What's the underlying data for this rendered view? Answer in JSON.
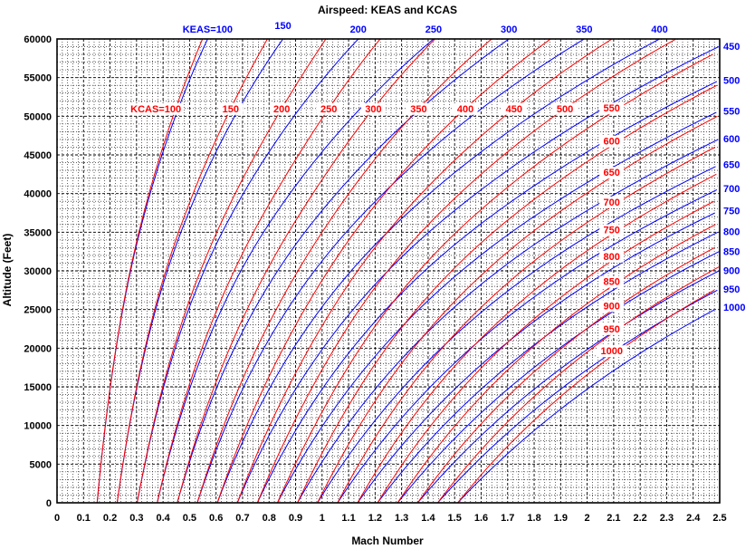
{
  "chart_data": {
    "type": "line",
    "title": "Airspeed: KEAS and KCAS",
    "xlabel": "Mach Number",
    "ylabel": "Altitude (Feet)",
    "xlim": [
      0,
      2.5
    ],
    "ylim": [
      0,
      60000
    ],
    "x_ticks": [
      "0",
      "0.1",
      "0.2",
      "0.3",
      "0.4",
      "0.5",
      "0.6",
      "0.7",
      "0.8",
      "0.9",
      "1",
      "1.1",
      "1.2",
      "1.3",
      "1.4",
      "1.5",
      "1.6",
      "1.7",
      "1.8",
      "1.9",
      "2",
      "2.1",
      "2.2",
      "2.3",
      "2.4",
      "2.5"
    ],
    "y_ticks": [
      "0",
      "5000",
      "10000",
      "15000",
      "20000",
      "25000",
      "30000",
      "35000",
      "40000",
      "45000",
      "50000",
      "55000",
      "60000"
    ],
    "grid": "on",
    "colors": {
      "kcas": "#ff0000",
      "keas": "#0000ff",
      "grid": "#000000"
    },
    "series": [
      {
        "name": "KCAS",
        "speeds_knots": [
          100,
          150,
          200,
          250,
          300,
          350,
          400,
          450,
          500,
          550,
          600,
          650,
          700,
          750,
          800,
          850,
          900,
          950,
          1000
        ],
        "labels": [
          "KCAS=100",
          "150",
          "200",
          "250",
          "300",
          "350",
          "400",
          "450",
          "500",
          "550",
          "600",
          "650",
          "700",
          "750",
          "800",
          "850",
          "900",
          "950",
          "1000"
        ]
      },
      {
        "name": "KEAS",
        "speeds_knots": [
          100,
          150,
          200,
          250,
          300,
          350,
          400,
          450,
          500,
          550,
          600,
          650,
          700,
          750,
          800,
          850,
          900,
          950,
          1000
        ],
        "labels": [
          "KEAS=100",
          "150",
          "200",
          "250",
          "300",
          "350",
          "400",
          "450",
          "500",
          "550",
          "600",
          "650",
          "700",
          "750",
          "800",
          "850",
          "900",
          "950",
          "1000"
        ]
      }
    ]
  }
}
